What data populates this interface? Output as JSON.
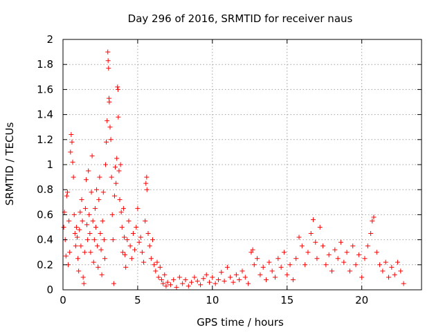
{
  "chart_data": {
    "type": "scatter",
    "title": "Day 296 of 2016, SRMTID for receiver naus",
    "xlabel": "GPS time / hours",
    "ylabel": "SRMTID / TECUs",
    "xlim": [
      0,
      24
    ],
    "ylim": [
      0,
      2
    ],
    "xticks": [
      0,
      5,
      10,
      15,
      20
    ],
    "xtick_labels": [
      "0",
      "5",
      "10",
      "15",
      "20"
    ],
    "yticks": [
      0,
      0.2,
      0.4,
      0.6,
      0.8,
      1,
      1.2,
      1.4,
      1.6,
      1.8,
      2
    ],
    "ytick_labels": [
      "0",
      "0.2",
      "0.4",
      "0.6",
      "0.8",
      "1",
      "1.2",
      "1.4",
      "1.6",
      "1.8",
      "2"
    ],
    "grid": true,
    "marker": "+",
    "color": "#ff0000",
    "series": [
      {
        "points": [
          [
            0.05,
            0.5
          ],
          [
            0.1,
            0.62
          ],
          [
            0.15,
            0.4
          ],
          [
            0.2,
            0.27
          ],
          [
            0.25,
            0.75
          ],
          [
            0.3,
            0.78
          ],
          [
            0.35,
            0.2
          ],
          [
            0.4,
            0.55
          ],
          [
            0.45,
            0.3
          ],
          [
            0.5,
            1.1
          ],
          [
            0.55,
            1.24
          ],
          [
            0.6,
            1.18
          ],
          [
            0.65,
            1.02
          ],
          [
            0.7,
            0.9
          ],
          [
            0.75,
            0.6
          ],
          [
            0.8,
            0.45
          ],
          [
            0.85,
            0.35
          ],
          [
            0.9,
            0.5
          ],
          [
            0.95,
            0.42
          ],
          [
            1.0,
            0.25
          ],
          [
            1.05,
            0.15
          ],
          [
            1.1,
            0.48
          ],
          [
            1.15,
            0.62
          ],
          [
            1.2,
            0.35
          ],
          [
            1.25,
            0.72
          ],
          [
            1.3,
            0.55
          ],
          [
            1.35,
            0.1
          ],
          [
            1.4,
            0.05
          ],
          [
            1.45,
            0.3
          ],
          [
            1.5,
            0.65
          ],
          [
            1.55,
            0.88
          ],
          [
            1.6,
            0.52
          ],
          [
            1.65,
            0.4
          ],
          [
            1.7,
            0.95
          ],
          [
            1.75,
            0.6
          ],
          [
            1.8,
            0.45
          ],
          [
            1.85,
            0.3
          ],
          [
            1.9,
            0.78
          ],
          [
            1.95,
            1.07
          ],
          [
            2.0,
            0.55
          ],
          [
            2.05,
            0.22
          ],
          [
            2.1,
            0.4
          ],
          [
            2.15,
            0.65
          ],
          [
            2.2,
            0.5
          ],
          [
            2.25,
            0.8
          ],
          [
            2.3,
            0.35
          ],
          [
            2.35,
            0.18
          ],
          [
            2.4,
            0.72
          ],
          [
            2.45,
            0.9
          ],
          [
            2.5,
            0.45
          ],
          [
            2.55,
            0.32
          ],
          [
            2.6,
            0.12
          ],
          [
            2.65,
            0.55
          ],
          [
            2.7,
            0.78
          ],
          [
            2.75,
            0.4
          ],
          [
            2.8,
            0.25
          ],
          [
            2.85,
            1.0
          ],
          [
            2.9,
            1.18
          ],
          [
            2.95,
            1.35
          ],
          [
            3.0,
            1.9
          ],
          [
            3.02,
            1.83
          ],
          [
            3.05,
            1.77
          ],
          [
            3.08,
            1.53
          ],
          [
            3.1,
            1.5
          ],
          [
            3.15,
            1.3
          ],
          [
            3.2,
            1.2
          ],
          [
            3.25,
            0.9
          ],
          [
            3.3,
            0.6
          ],
          [
            3.35,
            0.4
          ],
          [
            3.4,
            0.05
          ],
          [
            3.45,
            0.75
          ],
          [
            3.5,
            0.98
          ],
          [
            3.55,
            0.85
          ],
          [
            3.6,
            1.05
          ],
          [
            3.65,
            1.62
          ],
          [
            3.68,
            1.6
          ],
          [
            3.7,
            1.38
          ],
          [
            3.75,
            0.95
          ],
          [
            3.8,
            0.72
          ],
          [
            3.85,
            1.0
          ],
          [
            3.9,
            0.62
          ],
          [
            3.95,
            0.5
          ],
          [
            4.0,
            0.3
          ],
          [
            4.05,
            0.65
          ],
          [
            4.1,
            0.42
          ],
          [
            4.15,
            0.28
          ],
          [
            4.2,
            0.18
          ],
          [
            4.3,
            0.4
          ],
          [
            4.4,
            0.55
          ],
          [
            4.5,
            0.35
          ],
          [
            4.6,
            0.25
          ],
          [
            4.7,
            0.45
          ],
          [
            4.8,
            0.32
          ],
          [
            4.9,
            0.5
          ],
          [
            5.0,
            0.65
          ],
          [
            5.1,
            0.38
          ],
          [
            5.2,
            0.42
          ],
          [
            5.3,
            0.3
          ],
          [
            5.4,
            0.22
          ],
          [
            5.5,
            0.55
          ],
          [
            5.55,
            0.85
          ],
          [
            5.6,
            0.9
          ],
          [
            5.62,
            0.8
          ],
          [
            5.7,
            0.45
          ],
          [
            5.8,
            0.35
          ],
          [
            5.9,
            0.25
          ],
          [
            6.0,
            0.4
          ],
          [
            6.1,
            0.2
          ],
          [
            6.2,
            0.15
          ],
          [
            6.3,
            0.22
          ],
          [
            6.4,
            0.1
          ],
          [
            6.5,
            0.18
          ],
          [
            6.6,
            0.08
          ],
          [
            6.7,
            0.05
          ],
          [
            6.8,
            0.12
          ],
          [
            6.9,
            0.03
          ],
          [
            7.0,
            0.06
          ],
          [
            7.2,
            0.04
          ],
          [
            7.4,
            0.08
          ],
          [
            7.6,
            0.02
          ],
          [
            7.8,
            0.1
          ],
          [
            8.0,
            0.05
          ],
          [
            8.2,
            0.08
          ],
          [
            8.4,
            0.03
          ],
          [
            8.6,
            0.06
          ],
          [
            8.8,
            0.1
          ],
          [
            9.0,
            0.07
          ],
          [
            9.2,
            0.04
          ],
          [
            9.4,
            0.09
          ],
          [
            9.6,
            0.12
          ],
          [
            9.8,
            0.06
          ],
          [
            10.0,
            0.1
          ],
          [
            10.2,
            0.05
          ],
          [
            10.4,
            0.08
          ],
          [
            10.6,
            0.14
          ],
          [
            10.8,
            0.07
          ],
          [
            11.0,
            0.18
          ],
          [
            11.2,
            0.1
          ],
          [
            11.4,
            0.06
          ],
          [
            11.6,
            0.12
          ],
          [
            11.8,
            0.08
          ],
          [
            12.0,
            0.15
          ],
          [
            12.2,
            0.1
          ],
          [
            12.4,
            0.05
          ],
          [
            12.6,
            0.3
          ],
          [
            12.7,
            0.32
          ],
          [
            12.8,
            0.2
          ],
          [
            13.0,
            0.25
          ],
          [
            13.2,
            0.12
          ],
          [
            13.4,
            0.18
          ],
          [
            13.6,
            0.08
          ],
          [
            13.8,
            0.22
          ],
          [
            14.0,
            0.15
          ],
          [
            14.2,
            0.1
          ],
          [
            14.4,
            0.25
          ],
          [
            14.6,
            0.18
          ],
          [
            14.8,
            0.3
          ],
          [
            15.0,
            0.12
          ],
          [
            15.2,
            0.2
          ],
          [
            15.4,
            0.08
          ],
          [
            15.6,
            0.25
          ],
          [
            15.8,
            0.42
          ],
          [
            16.0,
            0.35
          ],
          [
            16.2,
            0.2
          ],
          [
            16.4,
            0.3
          ],
          [
            16.6,
            0.45
          ],
          [
            16.75,
            0.56
          ],
          [
            16.9,
            0.38
          ],
          [
            17.0,
            0.25
          ],
          [
            17.2,
            0.5
          ],
          [
            17.4,
            0.35
          ],
          [
            17.6,
            0.2
          ],
          [
            17.8,
            0.28
          ],
          [
            18.0,
            0.15
          ],
          [
            18.2,
            0.32
          ],
          [
            18.4,
            0.25
          ],
          [
            18.6,
            0.38
          ],
          [
            18.8,
            0.22
          ],
          [
            19.0,
            0.3
          ],
          [
            19.2,
            0.15
          ],
          [
            19.4,
            0.35
          ],
          [
            19.6,
            0.2
          ],
          [
            19.8,
            0.28
          ],
          [
            20.0,
            0.1
          ],
          [
            20.2,
            0.25
          ],
          [
            20.4,
            0.35
          ],
          [
            20.6,
            0.45
          ],
          [
            20.7,
            0.55
          ],
          [
            20.8,
            0.58
          ],
          [
            21.0,
            0.3
          ],
          [
            21.2,
            0.2
          ],
          [
            21.4,
            0.15
          ],
          [
            21.6,
            0.22
          ],
          [
            21.8,
            0.1
          ],
          [
            22.0,
            0.18
          ],
          [
            22.2,
            0.12
          ],
          [
            22.4,
            0.22
          ],
          [
            22.6,
            0.15
          ],
          [
            22.8,
            0.05
          ]
        ]
      }
    ]
  }
}
